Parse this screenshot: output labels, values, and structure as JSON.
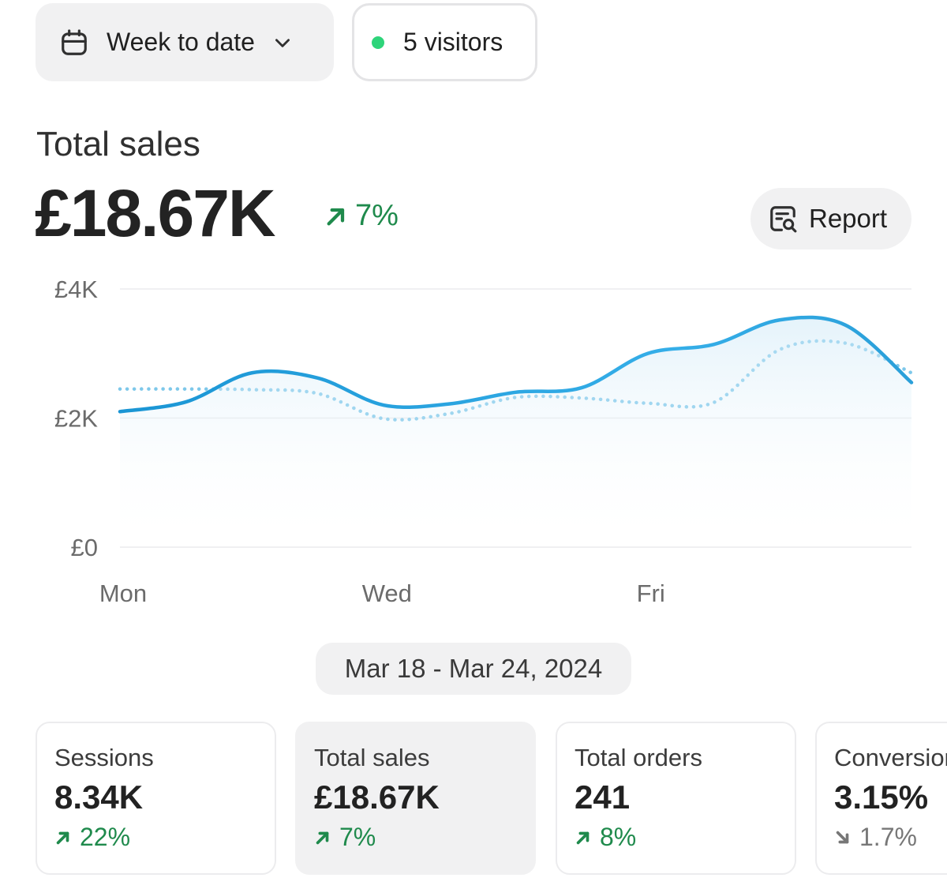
{
  "toolbar": {
    "date_range_label": "Week to date",
    "visitors_label": "5 visitors",
    "visitors_dot_color": "#2ed47a"
  },
  "summary": {
    "title": "Total sales",
    "value": "£18.67K",
    "change": "7%",
    "change_direction": "up",
    "report_label": "Report"
  },
  "chart_data": {
    "type": "line",
    "y_ticks": [
      "£4K",
      "£2K",
      "£0"
    ],
    "x_ticks": [
      "Mon",
      "Wed",
      "Fri"
    ],
    "ylim": [
      0,
      4000
    ],
    "x": [
      0,
      0.5,
      1,
      1.5,
      2,
      2.5,
      3,
      3.5,
      4,
      4.5,
      5,
      5.5,
      6
    ],
    "series": [
      {
        "style": "solid",
        "color": "#1e9fd9",
        "values": [
          2100,
          2250,
          2700,
          2620,
          2200,
          2220,
          2400,
          2470,
          3000,
          3140,
          3520,
          3440,
          2550
        ]
      },
      {
        "style": "dotted",
        "color": "#7ec8ea",
        "values": [
          2450,
          2450,
          2440,
          2380,
          1990,
          2070,
          2320,
          2310,
          2230,
          2240,
          3060,
          3160,
          2700
        ]
      }
    ],
    "grid": true,
    "legend": "none"
  },
  "period_label": "Mar 18 - Mar 24, 2024",
  "metrics": [
    {
      "label": "Sessions",
      "value": "8.34K",
      "change": "22%",
      "direction": "up"
    },
    {
      "label": "Total sales",
      "value": "£18.67K",
      "change": "7%",
      "direction": "up"
    },
    {
      "label": "Total orders",
      "value": "241",
      "change": "8%",
      "direction": "up"
    },
    {
      "label": "Conversion rate",
      "value": "3.15%",
      "change": "1.7%",
      "direction": "down"
    }
  ]
}
